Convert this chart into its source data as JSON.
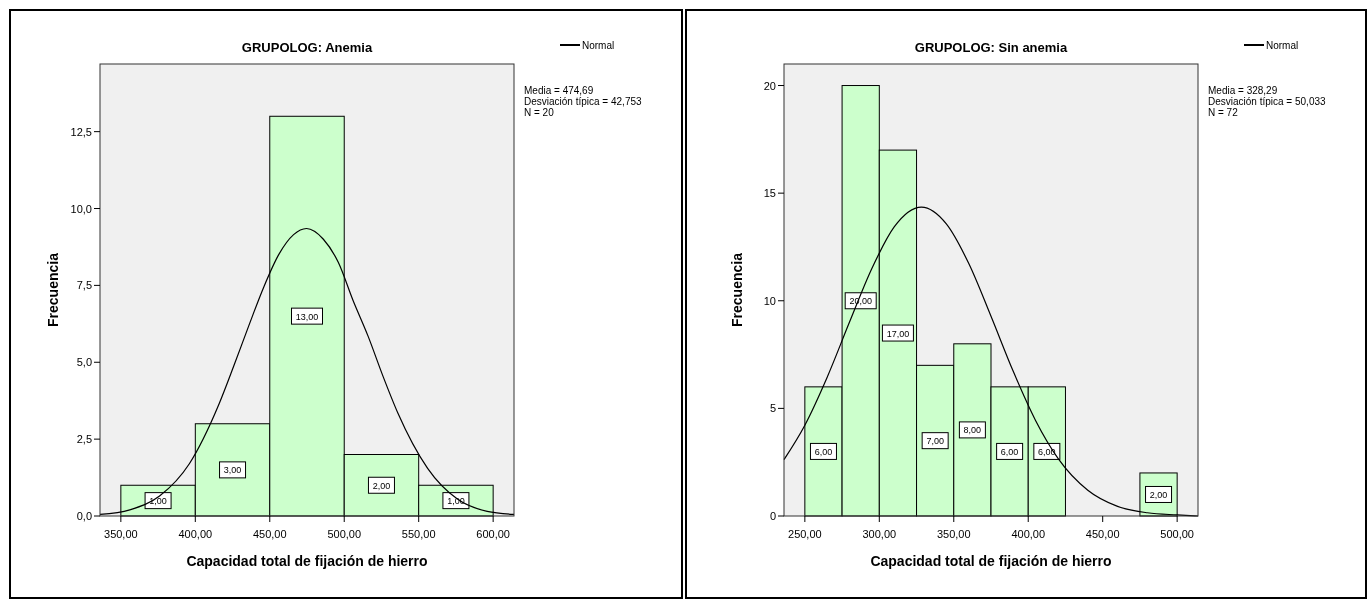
{
  "chart_data": [
    {
      "type": "histogram",
      "title": "GRUPOLOG: Anemia",
      "xlabel": "Capacidad total de fijación de hierro",
      "ylabel": "Frecuencia",
      "series": [
        {
          "color": "#ccffcc",
          "bins": [
            350,
            400,
            450,
            500,
            550,
            600
          ],
          "values": [
            1,
            3,
            13,
            2,
            1
          ],
          "value_labels": [
            "1,00",
            "3,00",
            "13,00",
            "2,00",
            "1,00"
          ]
        },
        {
          "type": "line",
          "name": "Normal",
          "color": "#000000",
          "x": [
            336,
            356,
            376,
            396,
            416,
            426,
            436,
            446,
            456,
            466,
            474.69,
            486,
            496,
            506,
            516,
            526,
            536,
            556,
            576,
            596,
            614
          ],
          "values": [
            0.05,
            0.2,
            0.65,
            1.7,
            3.65,
            4.9,
            6.2,
            7.45,
            8.5,
            9.15,
            9.35,
            9.0,
            8.25,
            7.0,
            5.85,
            4.55,
            3.35,
            1.55,
            0.55,
            0.15,
            0.05
          ]
        }
      ],
      "xlim": [
        336,
        614
      ],
      "ylim": [
        0,
        14.7
      ],
      "xticks": [
        {
          "value": 350,
          "label": "350,00"
        },
        {
          "value": 400,
          "label": "400,00"
        },
        {
          "value": 450,
          "label": "450,00"
        },
        {
          "value": 500,
          "label": "500,00"
        },
        {
          "value": 550,
          "label": "550,00"
        },
        {
          "value": 600,
          "label": "600,00"
        }
      ],
      "yticks": [
        {
          "value": 0,
          "label": "0,0"
        },
        {
          "value": 2.5,
          "label": "2,5"
        },
        {
          "value": 5,
          "label": "5,0"
        },
        {
          "value": 7.5,
          "label": "7,5"
        },
        {
          "value": 10,
          "label": "10,0"
        },
        {
          "value": 12.5,
          "label": "12,5"
        }
      ],
      "legend": "top right",
      "grid": false,
      "annotations": [
        "Media = 474,69",
        "Desviación típica = 42,753",
        "N = 20"
      ]
    },
    {
      "type": "histogram",
      "title": "GRUPOLOG: Sin anemia",
      "xlabel": "Capacidad total de fijación de hierro",
      "ylabel": "Frecuencia",
      "series": [
        {
          "color": "#ccffcc",
          "bins": [
            250,
            275,
            300,
            325,
            350,
            375,
            400,
            425,
            450,
            475,
            500
          ],
          "values": [
            6,
            20,
            17,
            7,
            8,
            6,
            6,
            0,
            0,
            2
          ],
          "value_labels": [
            "6,00",
            "20,00",
            "17,00",
            "7,00",
            "8,00",
            "6,00",
            "6,00",
            null,
            null,
            "2,00"
          ]
        },
        {
          "type": "line",
          "name": "Normal",
          "color": "#000000",
          "x": [
            236,
            250,
            265,
            280,
            295,
            310,
            328.29,
            345,
            360,
            375,
            390,
            405,
            420,
            440,
            460,
            480,
            500,
            514
          ],
          "values": [
            2.62,
            4.22,
            6.45,
            9.01,
            11.5,
            13.43,
            14.35,
            13.57,
            11.74,
            9.28,
            6.71,
            4.43,
            2.68,
            1.2,
            0.45,
            0.15,
            0.05,
            0.0
          ]
        }
      ],
      "xlim": [
        236,
        514
      ],
      "ylim": [
        0,
        21
      ],
      "xticks": [
        {
          "value": 250,
          "label": "250,00"
        },
        {
          "value": 300,
          "label": "300,00"
        },
        {
          "value": 350,
          "label": "350,00"
        },
        {
          "value": 400,
          "label": "400,00"
        },
        {
          "value": 450,
          "label": "450,00"
        },
        {
          "value": 500,
          "label": "500,00"
        }
      ],
      "yticks": [
        0,
        5,
        10,
        15,
        20
      ],
      "legend": "top right",
      "grid": false,
      "annotations": [
        "Media = 328,29",
        "Desviación típica = 50,033",
        "N = 72"
      ]
    }
  ]
}
